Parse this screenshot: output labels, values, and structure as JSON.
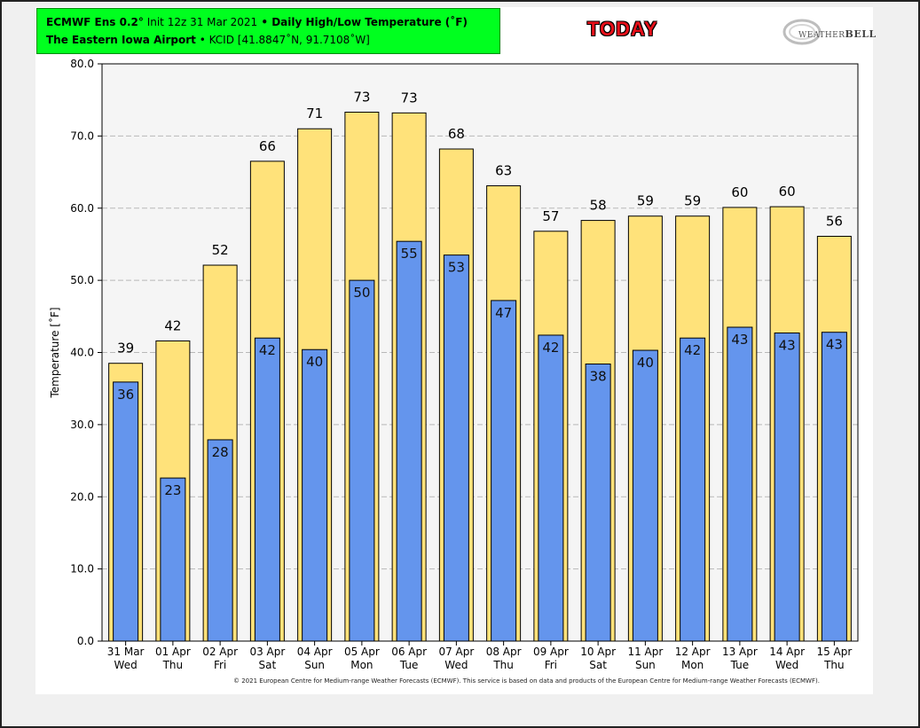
{
  "header": {
    "line1_model": "ECMWF Ens 0.2",
    "line1_deg": "°",
    "line1_init": " Init 12z 31 Mar 2021",
    "line1_sep": " • ",
    "line1_title": "Daily High/Low Temperature (˚F)",
    "line2_station": "The Eastern Iowa Airport",
    "line2_sep": " • ",
    "line2_loc": "KCID [41.8847˚N, 91.7108˚W]"
  },
  "today_label": "TODAY",
  "logo": {
    "name": "WeatherBELL logo",
    "text_a": "WEATHER",
    "text_b": "BELL"
  },
  "copyright": "© 2021 European Centre for Medium-range Weather Forecasts (ECMWF). This service is based on data and products of the European Centre for Medium-range Weather Forecasts (ECMWF).",
  "colors": {
    "high": "#ffe27a",
    "low": "#6495ed",
    "grid": "#b8b8b8",
    "plot_bg": "#f5f5f5"
  },
  "chart_data": {
    "type": "bar",
    "ylabel": "Temperature [˚F]",
    "ylim": [
      0,
      80
    ],
    "yticks": [
      "0.0",
      "10.0",
      "20.0",
      "30.0",
      "40.0",
      "50.0",
      "60.0",
      "70.0",
      "80.0"
    ],
    "grid": true,
    "categories": [
      [
        "31 Mar",
        "Wed"
      ],
      [
        "01 Apr",
        "Thu"
      ],
      [
        "02 Apr",
        "Fri"
      ],
      [
        "03 Apr",
        "Sat"
      ],
      [
        "04 Apr",
        "Sun"
      ],
      [
        "05 Apr",
        "Mon"
      ],
      [
        "06 Apr",
        "Tue"
      ],
      [
        "07 Apr",
        "Wed"
      ],
      [
        "08 Apr",
        "Thu"
      ],
      [
        "09 Apr",
        "Fri"
      ],
      [
        "10 Apr",
        "Sat"
      ],
      [
        "11 Apr",
        "Sun"
      ],
      [
        "12 Apr",
        "Mon"
      ],
      [
        "13 Apr",
        "Tue"
      ],
      [
        "14 Apr",
        "Wed"
      ],
      [
        "15 Apr",
        "Thu"
      ]
    ],
    "series": [
      {
        "key": "high",
        "values": [
          38.5,
          41.6,
          52.1,
          66.5,
          71.0,
          73.3,
          73.2,
          68.2,
          63.1,
          56.8,
          58.3,
          58.9,
          58.9,
          60.1,
          60.2,
          56.1
        ],
        "labels": [
          "39",
          "42",
          "52",
          "66",
          "71",
          "73",
          "73",
          "68",
          "63",
          "57",
          "58",
          "59",
          "59",
          "60",
          "60",
          "56"
        ]
      },
      {
        "key": "low",
        "values": [
          35.9,
          22.6,
          27.9,
          42.0,
          40.4,
          50.0,
          55.4,
          53.5,
          47.2,
          42.4,
          38.4,
          40.3,
          42.0,
          43.5,
          42.7,
          42.8
        ],
        "labels": [
          "36",
          "23",
          "28",
          "42",
          "40",
          "50",
          "55",
          "53",
          "47",
          "42",
          "38",
          "40",
          "42",
          "43",
          "43",
          "43"
        ]
      }
    ]
  }
}
